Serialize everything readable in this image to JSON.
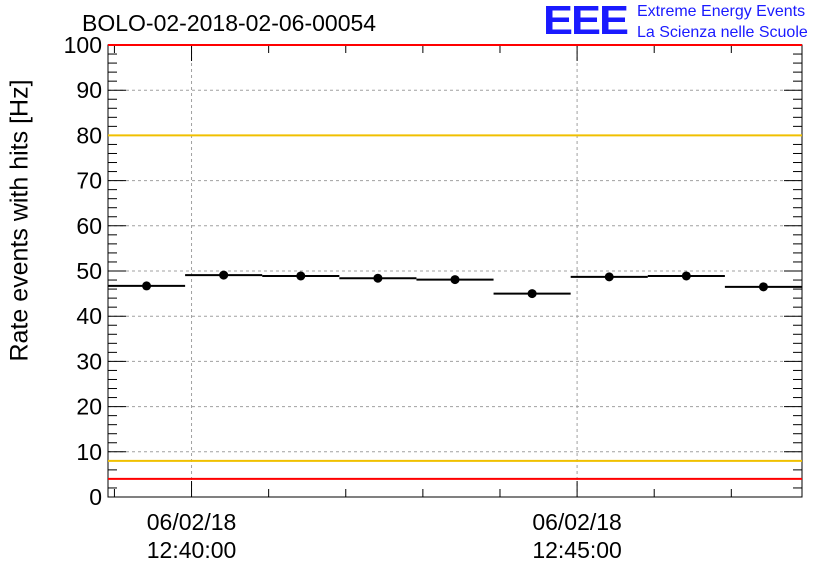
{
  "chart_data": {
    "type": "scatter",
    "title": "BOLO-02-2018-02-06-00054",
    "ylabel": "Rate events with hits [Hz]",
    "xlabel": "",
    "ylim": [
      0,
      100
    ],
    "yticks": [
      0,
      10,
      20,
      30,
      40,
      50,
      60,
      70,
      80,
      90,
      100
    ],
    "xlim": [
      "2018-02-06 12:38:55",
      "2018-02-06 12:47:55"
    ],
    "x_tick_labels": [
      {
        "date": "06/02/18",
        "time": "12:40:00",
        "x": "2018-02-06 12:40:00"
      },
      {
        "date": "06/02/18",
        "time": "12:45:00",
        "x": "2018-02-06 12:45:00"
      }
    ],
    "grid": true,
    "series": [
      {
        "points": [
          {
            "x_start": "2018-02-06 12:38:55",
            "x_end": "2018-02-06 12:39:55",
            "y": 46.7
          },
          {
            "x_start": "2018-02-06 12:39:55",
            "x_end": "2018-02-06 12:40:55",
            "y": 49.1
          },
          {
            "x_start": "2018-02-06 12:40:55",
            "x_end": "2018-02-06 12:41:55",
            "y": 48.9
          },
          {
            "x_start": "2018-02-06 12:41:55",
            "x_end": "2018-02-06 12:42:55",
            "y": 48.4
          },
          {
            "x_start": "2018-02-06 12:42:55",
            "x_end": "2018-02-06 12:43:55",
            "y": 48.1
          },
          {
            "x_start": "2018-02-06 12:43:55",
            "x_end": "2018-02-06 12:44:55",
            "y": 45.0
          },
          {
            "x_start": "2018-02-06 12:44:55",
            "x_end": "2018-02-06 12:45:55",
            "y": 48.7
          },
          {
            "x_start": "2018-02-06 12:45:55",
            "x_end": "2018-02-06 12:46:55",
            "y": 48.9
          },
          {
            "x_start": "2018-02-06 12:46:55",
            "x_end": "2018-02-06 12:47:55",
            "y": 46.5
          }
        ]
      }
    ],
    "reference_lines": [
      {
        "y": 100,
        "color": "#ff0000"
      },
      {
        "y": 80,
        "color": "#f0c000"
      },
      {
        "y": 8,
        "color": "#f0c000"
      },
      {
        "y": 4,
        "color": "#ff0000"
      }
    ]
  },
  "logo": {
    "mark": "EEE",
    "line1": "Extreme Energy Events",
    "line2": "La Scienza nelle Scuole",
    "color": "#1a1aff"
  }
}
